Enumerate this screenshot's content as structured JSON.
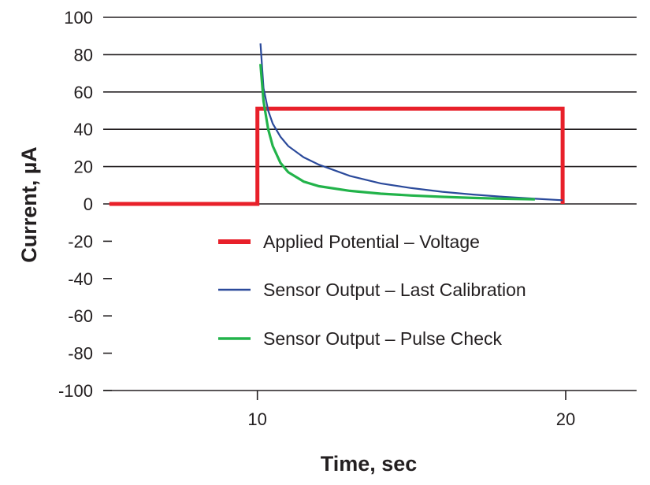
{
  "chart_data": {
    "type": "line",
    "title": "",
    "xlabel": "Time, sec",
    "ylabel": "Current, µA",
    "xlim": [
      5,
      22.3
    ],
    "ylim": [
      -100,
      100
    ],
    "x_ticks": [
      10,
      20
    ],
    "x_tick_labels": [
      "10",
      "20"
    ],
    "y_ticks": [
      100,
      80,
      60,
      40,
      20,
      0,
      -20,
      -40,
      -60,
      -80,
      -100
    ],
    "y_tick_labels": [
      "100",
      "80",
      "60",
      "40",
      "20",
      "0",
      "-20",
      "-40",
      "-60",
      "-80",
      "-100"
    ],
    "grid": "horizontal lines for y >= 0",
    "legend_position": "inside, lower center",
    "series": [
      {
        "name": "Applied Potential – Voltage",
        "color": "#e8202a",
        "x": [
          5.2,
          10.0,
          10.0,
          19.9,
          19.9
        ],
        "y": [
          0,
          0,
          51,
          51,
          0
        ]
      },
      {
        "name": "Sensor Output – Last Calibration",
        "color": "#2b4a9b",
        "x": [
          10.1,
          10.2,
          10.35,
          10.5,
          10.75,
          11.0,
          11.5,
          12.0,
          13.0,
          14.0,
          15.0,
          16.0,
          17.0,
          18.0,
          19.0,
          19.9
        ],
        "y": [
          86,
          62,
          50,
          43,
          36,
          31,
          25,
          21,
          15,
          11,
          8.5,
          6.5,
          5,
          3.8,
          2.8,
          2
        ]
      },
      {
        "name": "Sensor Output – Pulse Check",
        "color": "#22b34a",
        "x": [
          10.1,
          10.2,
          10.35,
          10.5,
          10.75,
          11.0,
          11.5,
          12.0,
          13.0,
          14.0,
          15.0,
          16.0,
          17.0,
          18.0,
          19.0
        ],
        "y": [
          75,
          55,
          40,
          31,
          22,
          17,
          12,
          9.5,
          7,
          5.5,
          4.5,
          3.8,
          3.2,
          2.8,
          2.5
        ]
      }
    ]
  }
}
